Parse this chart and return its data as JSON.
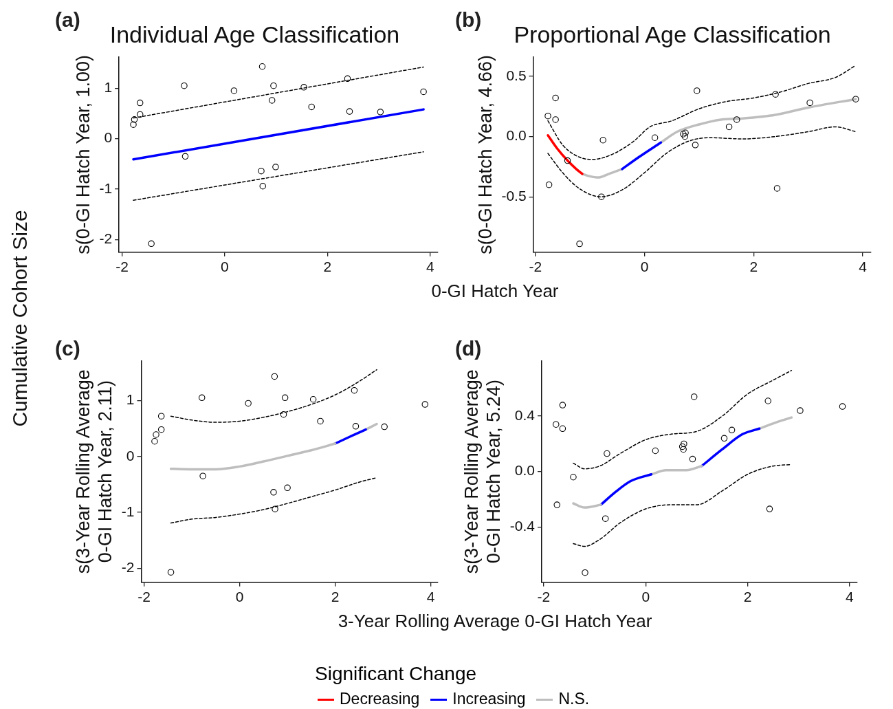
{
  "chart_data": [
    {
      "type": "line",
      "title": "Individual Age Classification",
      "xlabel": "0-GI Hatch Year",
      "ylabel": "s(0-GI Hatch Year, 1.00)",
      "annotations": [
        "(a)",
        "Cumulative Cohort Size"
      ],
      "xlim": [
        -2.06,
        4.15
      ],
      "xticks": [
        -2,
        0,
        2,
        4
      ],
      "ylim": [
        -2.25,
        1.62
      ],
      "yticks": [
        -2,
        -1,
        0,
        1
      ],
      "grid": false,
      "legend": false,
      "series": [
        {
          "type": "scatter",
          "color": "#000000",
          "marker": "circle",
          "x": [
            -1.78,
            -1.76,
            -1.65,
            -1.65,
            -1.43,
            -0.79,
            -0.77,
            0.18,
            0.71,
            0.73,
            0.74,
            0.92,
            0.95,
            0.99,
            1.54,
            1.69,
            2.39,
            2.43,
            3.03,
            3.87
          ],
          "values": [
            0.28,
            0.38,
            0.71,
            0.48,
            -2.08,
            1.05,
            -0.35,
            0.95,
            -0.64,
            1.43,
            -0.94,
            0.76,
            1.05,
            -0.56,
            1.02,
            0.63,
            1.19,
            0.54,
            0.53,
            0.93
          ]
        },
        {
          "color": "#000000",
          "line_style": "dashed",
          "x": [
            -1.78,
            3.87
          ],
          "values": [
            0.41,
            1.42
          ]
        },
        {
          "color": "#000000",
          "line_style": "dashed",
          "x": [
            -1.78,
            3.87
          ],
          "values": [
            -1.22,
            -0.26
          ]
        },
        {
          "color": "#0000ff",
          "x": [
            -1.78,
            3.87
          ],
          "values": [
            -0.41,
            0.58
          ]
        }
      ]
    },
    {
      "type": "line",
      "title": "Proportional Age Classification",
      "ylabel": "s(0-GI Hatch Year, 4.66)",
      "annotations": [
        "(b)"
      ],
      "xlim": [
        -2.04,
        4.15
      ],
      "xticks": [
        -2,
        0,
        2,
        4
      ],
      "ylim": [
        -0.96,
        0.66
      ],
      "yticks": [
        {
          "value": -0.5,
          "label": "-0.5"
        },
        {
          "value": 0,
          "label": "0.0"
        },
        {
          "value": 0.5,
          "label": "0.5"
        }
      ],
      "grid": false,
      "legend": "bottom",
      "legend_title": "Significant Change",
      "series": [
        {
          "type": "scatter",
          "color": "#000000",
          "marker": "circle",
          "x": [
            -1.77,
            -1.75,
            -1.63,
            -1.63,
            -1.41,
            -1.19,
            -0.79,
            -0.76,
            0.19,
            0.71,
            0.74,
            0.75,
            0.93,
            0.96,
            1.55,
            1.69,
            2.4,
            2.43,
            3.03,
            3.87
          ],
          "values": [
            0.17,
            -0.4,
            0.32,
            0.14,
            -0.2,
            -0.89,
            -0.5,
            -0.03,
            -0.01,
            0.02,
            0.0,
            0.03,
            -0.07,
            0.38,
            0.08,
            0.14,
            0.35,
            -0.43,
            0.28,
            0.31
          ]
        },
        {
          "color": "#000000",
          "line_style": "dashed",
          "x": [
            -1.77,
            -1.5,
            -1.2,
            -0.95,
            -0.6,
            -0.2,
            0.1,
            0.5,
            1.0,
            1.5,
            2.0,
            2.5,
            3.0,
            3.5,
            3.87
          ],
          "values": [
            0.13,
            -0.07,
            -0.17,
            -0.19,
            -0.15,
            -0.04,
            0.08,
            0.13,
            0.23,
            0.29,
            0.32,
            0.37,
            0.44,
            0.49,
            0.59
          ]
        },
        {
          "color": "#000000",
          "line_style": "dashed",
          "x": [
            -1.77,
            -1.5,
            -1.2,
            -0.8,
            -0.4,
            0.0,
            0.4,
            0.8,
            1.2,
            1.8,
            2.4,
            3.0,
            3.5,
            3.87
          ],
          "values": [
            -0.14,
            -0.3,
            -0.43,
            -0.5,
            -0.44,
            -0.3,
            -0.14,
            -0.04,
            -0.01,
            -0.02,
            0.0,
            0.04,
            0.08,
            0.04
          ]
        },
        {
          "name": "Decreasing",
          "color": "#ff0000",
          "x": [
            -1.77,
            -1.6,
            -1.41,
            -1.25,
            -1.14
          ],
          "values": [
            0.01,
            -0.1,
            -0.2,
            -0.27,
            -0.31
          ]
        },
        {
          "name": "Increasing",
          "color": "#0000ff",
          "x": [
            -0.41,
            -0.1,
            0.3
          ],
          "values": [
            -0.27,
            -0.17,
            -0.05
          ]
        },
        {
          "name": "N.S.",
          "color": "#bebebe",
          "x": [
            -1.14,
            -1.0,
            -0.85,
            -0.65,
            -0.41
          ],
          "values": [
            -0.31,
            -0.33,
            -0.34,
            -0.31,
            -0.27
          ]
        },
        {
          "color": "#bebebe",
          "x": [
            0.3,
            0.6,
            1.0,
            1.4,
            1.8,
            2.4,
            3.0,
            3.87
          ],
          "values": [
            -0.05,
            0.04,
            0.1,
            0.14,
            0.15,
            0.18,
            0.24,
            0.31
          ]
        }
      ]
    },
    {
      "type": "line",
      "xlabel": "3-Year Rolling Average 0-GI Hatch Year",
      "ylabel": "s(3-Year Rolling Average 0-GI Hatch Year, 2.11)",
      "annotations": [
        "(c)"
      ],
      "xlim": [
        -2.06,
        4.15
      ],
      "xticks": [
        -2,
        0,
        2,
        4
      ],
      "ylim": [
        -2.25,
        1.71
      ],
      "yticks": [
        -2,
        -1,
        0,
        1
      ],
      "grid": false,
      "legend": false,
      "series": [
        {
          "type": "scatter",
          "color": "#000000",
          "marker": "circle",
          "x": [
            -1.78,
            -1.75,
            -1.64,
            -1.64,
            -1.44,
            -0.79,
            -0.77,
            0.18,
            0.71,
            0.73,
            0.74,
            0.92,
            0.95,
            1.0,
            1.54,
            1.69,
            2.4,
            2.43,
            3.03,
            3.88
          ],
          "values": [
            0.27,
            0.39,
            0.48,
            0.72,
            -2.07,
            1.05,
            -0.35,
            0.95,
            -0.64,
            1.43,
            -0.94,
            0.75,
            1.05,
            -0.56,
            1.02,
            0.63,
            1.18,
            0.54,
            0.53,
            0.93
          ]
        },
        {
          "color": "#000000",
          "line_style": "dashed",
          "x": [
            -1.44,
            -1.0,
            -0.5,
            0,
            0.5,
            1.0,
            1.5,
            2.0,
            2.5,
            2.87
          ],
          "values": [
            0.72,
            0.65,
            0.61,
            0.63,
            0.7,
            0.8,
            0.93,
            1.1,
            1.34,
            1.55
          ]
        },
        {
          "color": "#000000",
          "line_style": "dashed",
          "x": [
            -1.44,
            -1.0,
            -0.5,
            0,
            0.5,
            1.0,
            1.5,
            2.0,
            2.5,
            2.87
          ],
          "values": [
            -1.19,
            -1.12,
            -1.09,
            -1.03,
            -0.95,
            -0.84,
            -0.72,
            -0.6,
            -0.46,
            -0.38
          ]
        },
        {
          "color": "#bebebe",
          "x": [
            -1.44,
            -1.0,
            -0.5,
            0,
            0.5,
            1.0,
            1.5,
            2.0
          ],
          "values": [
            -0.22,
            -0.23,
            -0.23,
            -0.18,
            -0.09,
            0.01,
            0.11,
            0.23
          ]
        },
        {
          "color": "#0000ff",
          "x": [
            2.0,
            2.3,
            2.64
          ],
          "values": [
            0.23,
            0.35,
            0.48
          ]
        },
        {
          "color": "#bebebe",
          "x": [
            2.64,
            2.87
          ],
          "values": [
            0.48,
            0.58
          ]
        }
      ]
    },
    {
      "type": "line",
      "ylabel": "s(3-Year Rolling Average 0-GI Hatch Year, 5.24)",
      "annotations": [
        "(d)"
      ],
      "xlim": [
        -2.04,
        4.15
      ],
      "xticks": [
        -2,
        0,
        2,
        4
      ],
      "ylim": [
        -0.8,
        0.8
      ],
      "yticks": [
        {
          "value": -0.4,
          "label": "-0.4"
        },
        {
          "value": 0,
          "label": "0.0"
        },
        {
          "value": 0.4,
          "label": "0.4"
        }
      ],
      "grid": false,
      "legend": false,
      "series": [
        {
          "type": "scatter",
          "color": "#000000",
          "marker": "circle",
          "x": [
            -1.76,
            -1.74,
            -1.63,
            -1.63,
            -1.42,
            -1.19,
            -0.79,
            -0.76,
            0.19,
            0.72,
            0.74,
            0.75,
            0.92,
            0.95,
            1.54,
            1.69,
            2.4,
            2.43,
            3.03,
            3.86
          ],
          "values": [
            0.34,
            -0.24,
            0.48,
            0.31,
            -0.04,
            -0.73,
            -0.34,
            0.13,
            0.15,
            0.18,
            0.16,
            0.2,
            0.09,
            0.54,
            0.24,
            0.3,
            0.51,
            -0.27,
            0.44,
            0.47
          ]
        },
        {
          "color": "#000000",
          "line_style": "dashed",
          "x": [
            -1.42,
            -1.2,
            -0.9,
            -0.5,
            0,
            0.5,
            1.0,
            1.5,
            2.0,
            2.5,
            2.86
          ],
          "values": [
            0.06,
            0.02,
            0.04,
            0.13,
            0.23,
            0.27,
            0.29,
            0.4,
            0.56,
            0.66,
            0.73
          ]
        },
        {
          "color": "#000000",
          "line_style": "dashed",
          "x": [
            -1.42,
            -1.2,
            -0.9,
            -0.5,
            0,
            0.5,
            1.0,
            1.5,
            2.0,
            2.5,
            2.86
          ],
          "values": [
            -0.52,
            -0.54,
            -0.49,
            -0.37,
            -0.27,
            -0.24,
            -0.24,
            -0.14,
            -0.02,
            0.04,
            0.05
          ]
        },
        {
          "color": "#bebebe",
          "x": [
            -1.42,
            -1.2,
            -0.88
          ],
          "values": [
            -0.23,
            -0.26,
            -0.24
          ]
        },
        {
          "color": "#0000ff",
          "x": [
            -0.88,
            -0.6,
            -0.3,
            0.11
          ],
          "values": [
            -0.24,
            -0.15,
            -0.07,
            -0.02
          ]
        },
        {
          "color": "#bebebe",
          "x": [
            0.11,
            0.4,
            0.8,
            1.1
          ],
          "values": [
            -0.02,
            0.01,
            0.01,
            0.04
          ]
        },
        {
          "color": "#0000ff",
          "x": [
            1.1,
            1.5,
            1.9,
            2.23
          ],
          "values": [
            0.04,
            0.16,
            0.27,
            0.31
          ]
        },
        {
          "color": "#bebebe",
          "x": [
            2.23,
            2.6,
            2.86
          ],
          "values": [
            0.31,
            0.36,
            0.39
          ]
        }
      ]
    }
  ]
}
